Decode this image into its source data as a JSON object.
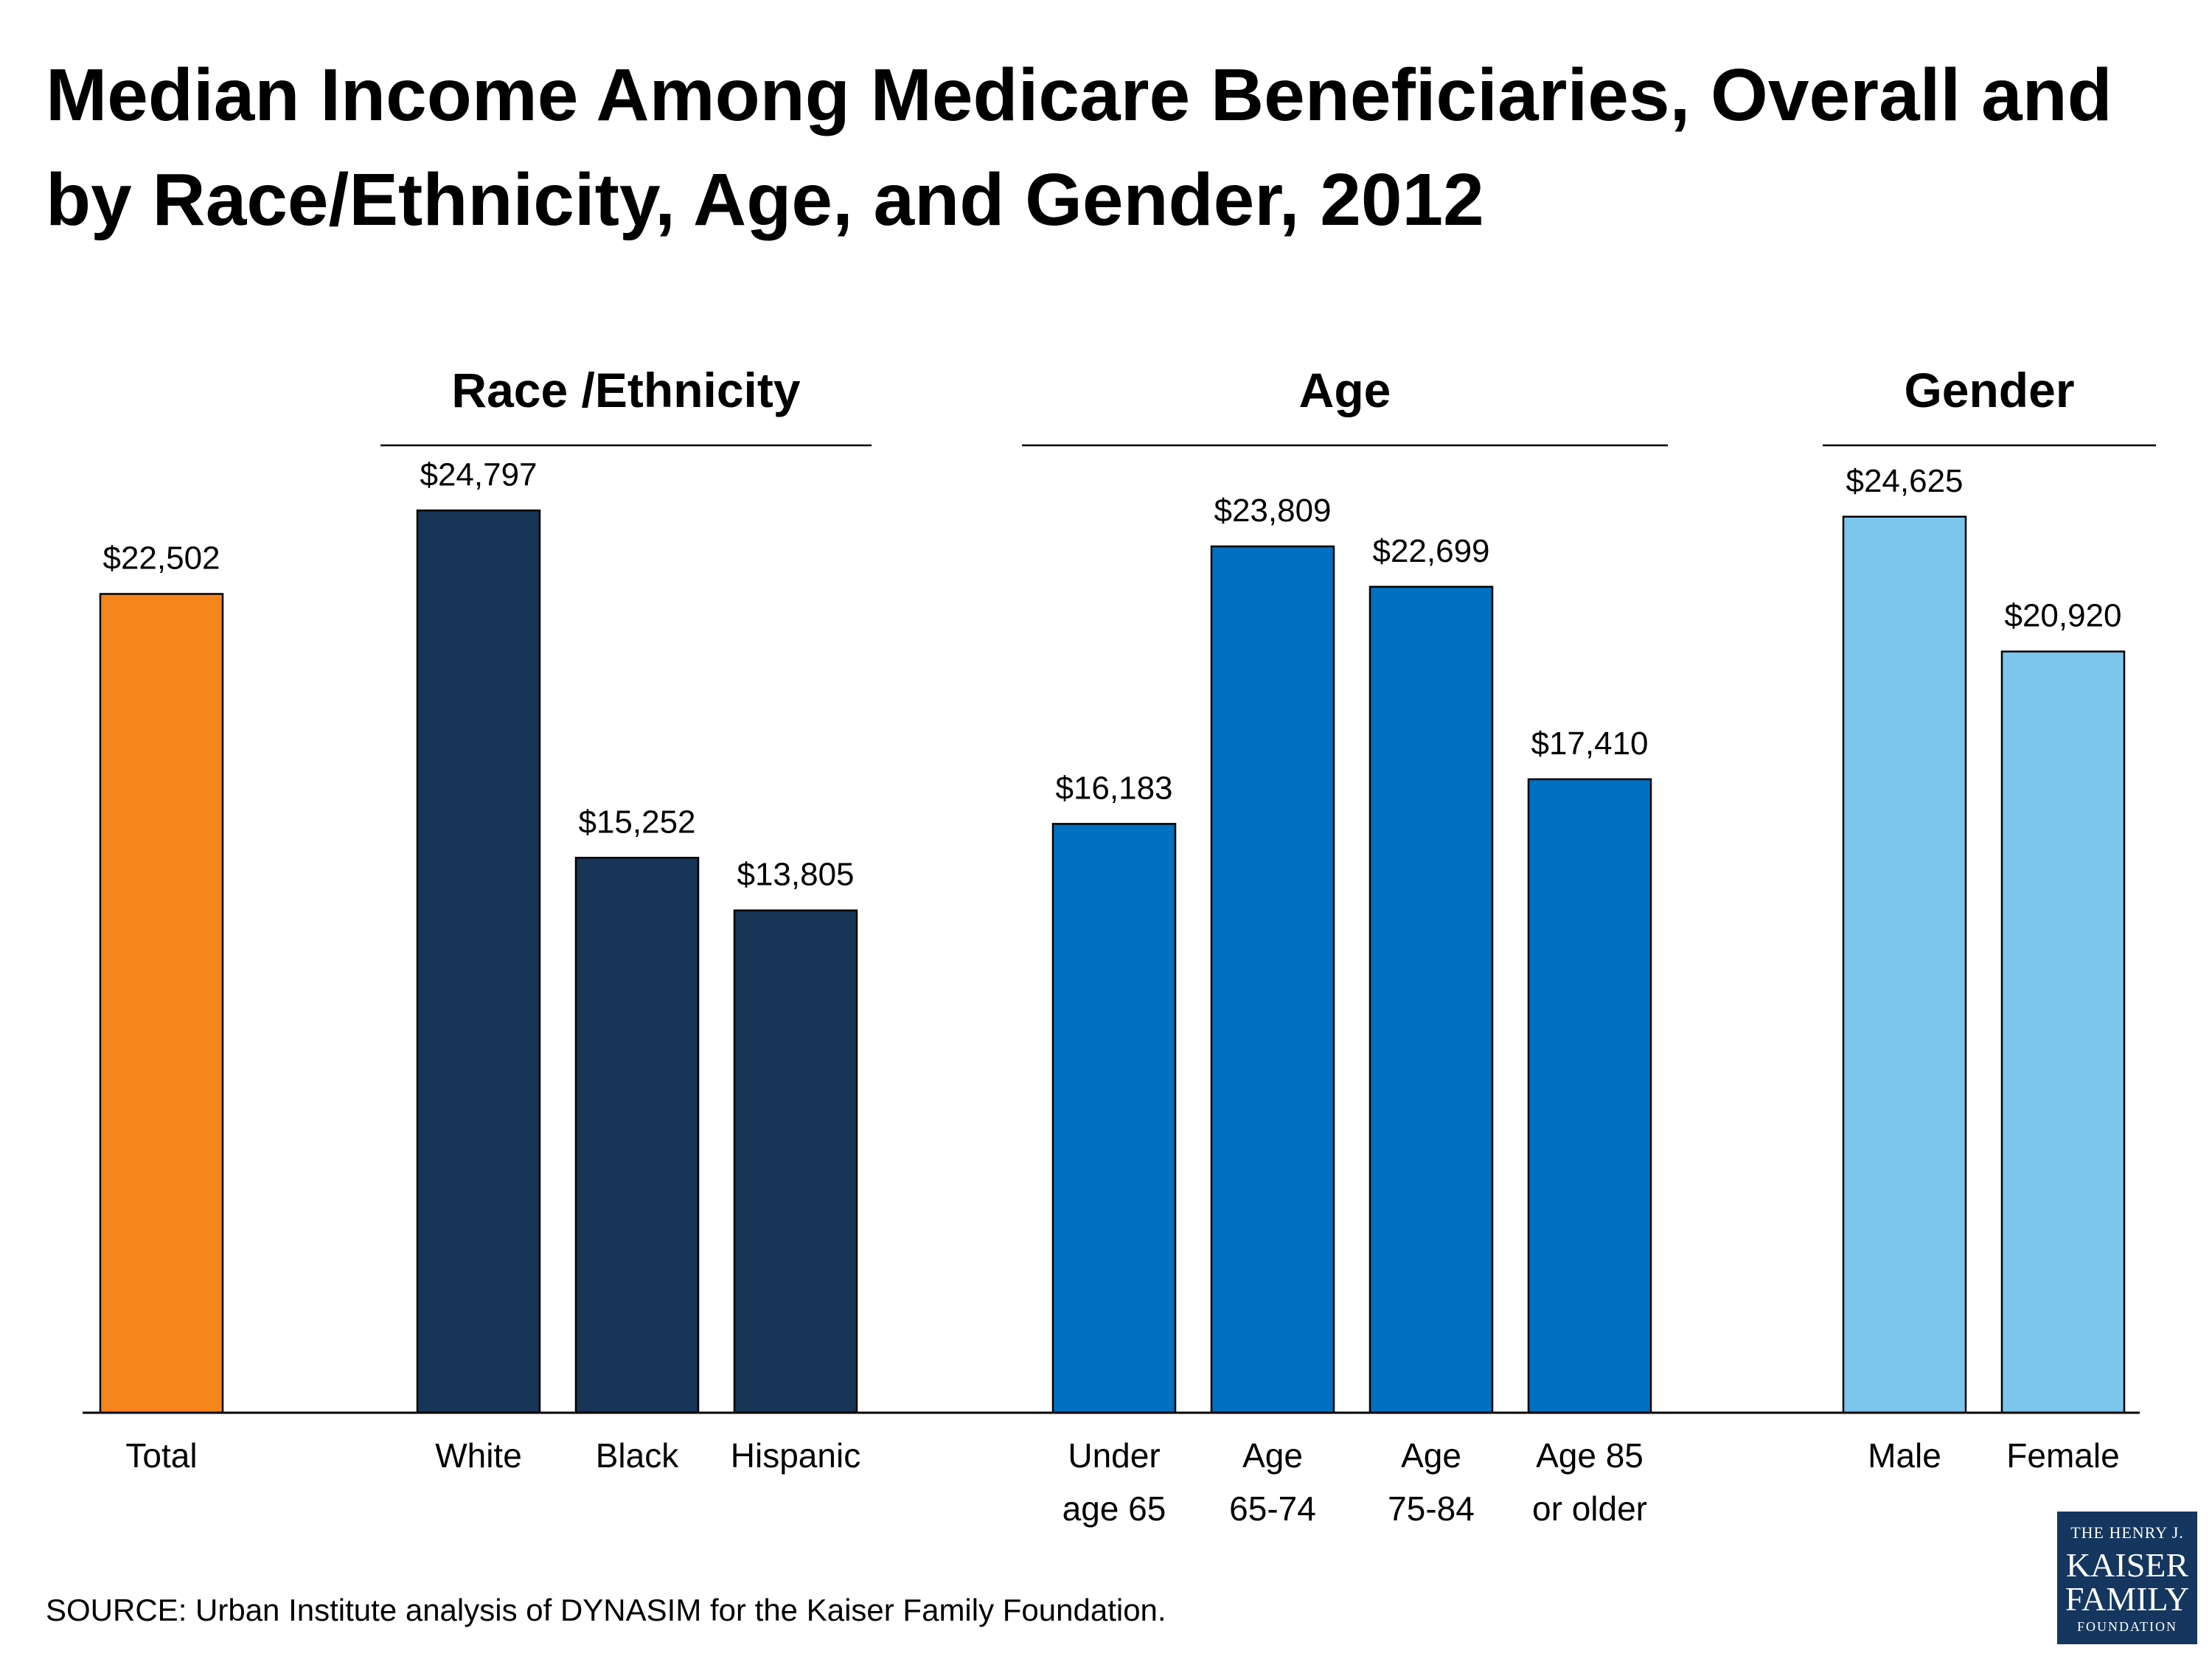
{
  "chart_data": {
    "type": "bar",
    "title": "Median Income Among Medicare Beneficiaries, Overall and by Race/Ethnicity, Age, and Gender, 2012",
    "xlabel": "",
    "ylabel": "",
    "ylim": [
      0,
      30000
    ],
    "groups": [
      {
        "id": "total",
        "label": "",
        "bars": [
          {
            "category": "Total",
            "label_lines": [
              "Total"
            ],
            "value": 22502,
            "value_label": "$22,502",
            "color": "#F7851E"
          }
        ]
      },
      {
        "id": "race",
        "label": "Race /Ethnicity",
        "bars": [
          {
            "category": "White",
            "label_lines": [
              "White"
            ],
            "value": 24797,
            "value_label": "$24,797",
            "color": "#163557"
          },
          {
            "category": "Black",
            "label_lines": [
              "Black"
            ],
            "value": 15252,
            "value_label": "$15,252",
            "color": "#163557"
          },
          {
            "category": "Hispanic",
            "label_lines": [
              "Hispanic"
            ],
            "value": 13805,
            "value_label": "$13,805",
            "color": "#163557"
          }
        ]
      },
      {
        "id": "age",
        "label": "Age",
        "bars": [
          {
            "category": "Under age 65",
            "label_lines": [
              "Under",
              "age 65"
            ],
            "value": 16183,
            "value_label": "$16,183",
            "color": "#0070C0"
          },
          {
            "category": "Age 65-74",
            "label_lines": [
              "Age",
              "65-74"
            ],
            "value": 23809,
            "value_label": "$23,809",
            "color": "#0070C0"
          },
          {
            "category": "Age 75-84",
            "label_lines": [
              "Age",
              "75-84"
            ],
            "value": 22699,
            "value_label": "$22,699",
            "color": "#0070C0"
          },
          {
            "category": "Age 85 or older",
            "label_lines": [
              "Age 85",
              "or older"
            ],
            "value": 17410,
            "value_label": "$17,410",
            "color": "#0070C0"
          }
        ]
      },
      {
        "id": "gender",
        "label": "Gender",
        "bars": [
          {
            "category": "Male",
            "label_lines": [
              "Male"
            ],
            "value": 24625,
            "value_label": "$24,625",
            "color": "#7CC5EC"
          },
          {
            "category": "Female",
            "label_lines": [
              "Female"
            ],
            "value": 20920,
            "value_label": "$20,920",
            "color": "#7CC5EC"
          }
        ]
      }
    ]
  },
  "page": {
    "title": "Median Income Among Medicare Beneficiaries, Overall and by Race/Ethnicity, Age, and Gender, 2012",
    "source": "SOURCE: Urban Institute analysis of DYNASIM for the Kaiser Family Foundation.",
    "logo": {
      "line1": "THE HENRY J.",
      "line2": "KAISER",
      "line3": "FAMILY",
      "line4": "FOUNDATION"
    }
  }
}
